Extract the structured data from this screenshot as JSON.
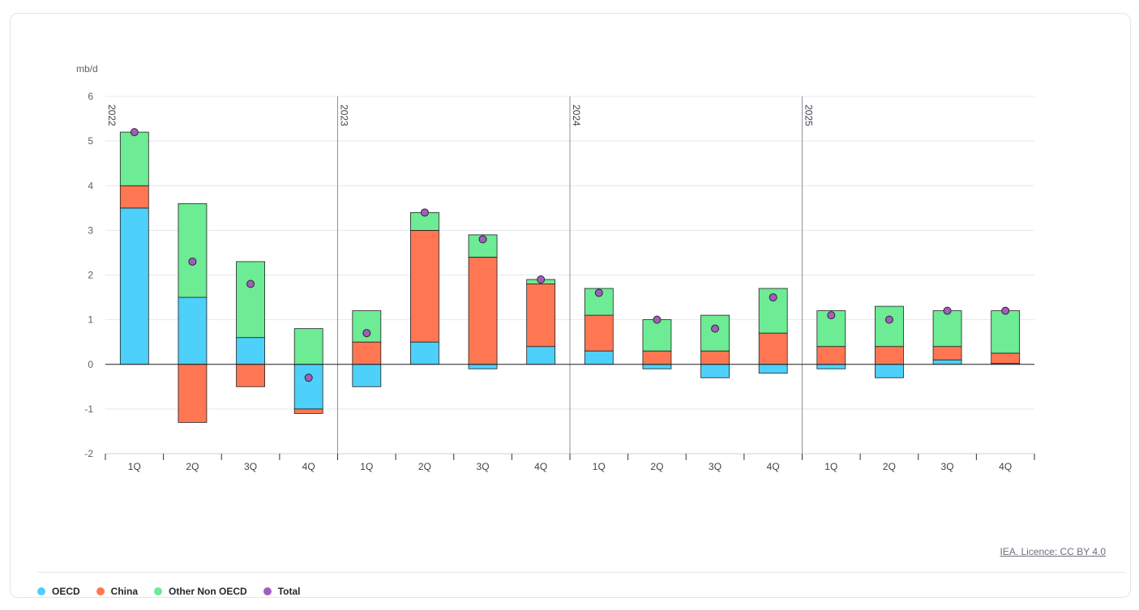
{
  "chart_data": {
    "type": "bar",
    "stacked": true,
    "unit_label": "mb/d",
    "ylim": [
      -2,
      6
    ],
    "yticks": [
      -2,
      -1,
      0,
      1,
      2,
      3,
      4,
      5,
      6
    ],
    "years": [
      "2022",
      "2023",
      "2024",
      "2025"
    ],
    "categories": [
      "1Q",
      "2Q",
      "3Q",
      "4Q",
      "1Q",
      "2Q",
      "3Q",
      "4Q",
      "1Q",
      "2Q",
      "3Q",
      "4Q",
      "1Q",
      "2Q",
      "3Q",
      "4Q"
    ],
    "series": [
      {
        "name": "OECD",
        "color": "#4dd0fa",
        "values": [
          3.5,
          1.5,
          0.6,
          -1.0,
          -0.5,
          0.5,
          -0.1,
          0.4,
          0.3,
          -0.1,
          -0.3,
          -0.2,
          -0.1,
          -0.3,
          0.1,
          0.02
        ]
      },
      {
        "name": "China",
        "color": "#ff7752",
        "values": [
          0.5,
          -1.3,
          -0.5,
          -0.1,
          0.5,
          2.5,
          2.4,
          1.4,
          0.8,
          0.3,
          0.3,
          0.7,
          0.4,
          0.4,
          0.3,
          0.23
        ]
      },
      {
        "name": "Other Non OECD",
        "color": "#6deb95",
        "values": [
          1.2,
          2.1,
          1.7,
          0.8,
          0.7,
          0.4,
          0.5,
          0.1,
          0.6,
          0.7,
          0.8,
          1.0,
          0.8,
          0.9,
          0.8,
          0.95
        ]
      },
      {
        "name": "Total",
        "type": "scatter",
        "color": "#a35cbf",
        "values": [
          5.2,
          2.3,
          1.8,
          -0.3,
          0.7,
          3.4,
          2.8,
          1.9,
          1.6,
          1.0,
          0.8,
          1.5,
          1.1,
          1.0,
          1.2,
          1.2
        ]
      }
    ]
  },
  "credit": "IEA. Licence: CC BY 4.0",
  "legend": [
    {
      "label": "OECD",
      "color": "#4dd0fa"
    },
    {
      "label": "China",
      "color": "#ff7752"
    },
    {
      "label": "Other Non OECD",
      "color": "#6deb95"
    },
    {
      "label": "Total",
      "color": "#a35cbf"
    }
  ]
}
